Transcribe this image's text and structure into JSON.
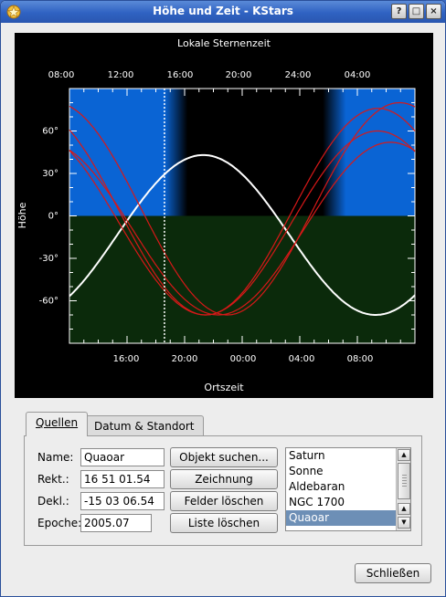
{
  "window": {
    "title": "Höhe und Zeit - KStars",
    "buttons": {
      "help": "?",
      "maximize": "□",
      "close": "×"
    }
  },
  "chart_data": {
    "type": "line",
    "top_axis_label": "Lokale Sternenzeit",
    "top_ticks": [
      "08:00",
      "12:00",
      "16:00",
      "20:00",
      "24:00",
      "04:00"
    ],
    "xlabel": "Ortszeit",
    "bottom_ticks": [
      "16:00",
      "20:00",
      "00:00",
      "04:00",
      "08:00"
    ],
    "ylabel": "Höhe",
    "y_ticks": [
      "60°",
      "30°",
      "0°",
      "-30°",
      "-60°"
    ],
    "ylim": [
      -90,
      90
    ],
    "x_hours": [
      12,
      36
    ],
    "current_time_hour": 18.6,
    "night": {
      "dark_start": 20.2,
      "dark_end": 29.6
    },
    "colors": {
      "day": "#0a64d4",
      "below_horizon": "#0b2a0b",
      "night": "#000000",
      "selected": "#ffffff",
      "other": "#d81818"
    },
    "series": [
      {
        "name": "Quaoar",
        "selected": true,
        "peak_alt": 43,
        "transit_hour": 21.3
      },
      {
        "name": "Saturn",
        "selected": false,
        "peak_alt": 80,
        "transit_hour": 11.0
      },
      {
        "name": "Sonne",
        "selected": false,
        "peak_alt": 76,
        "transit_hour": 9.5
      },
      {
        "name": "Aldebaran",
        "selected": false,
        "peak_alt": 60,
        "transit_hour": 33.4
      },
      {
        "name": "NGC 1700",
        "selected": false,
        "peak_alt": 52,
        "transit_hour": 34.3
      }
    ]
  },
  "tabs": [
    {
      "label": "Quellen",
      "active": true
    },
    {
      "label": "Datum & Standort",
      "active": false
    }
  ],
  "form": {
    "name_label": "Name:",
    "name_value": "Quaoar",
    "ra_label": "Rekt.:",
    "ra_value": "16 51 01.54",
    "dec_label": "Dekl.:",
    "dec_value": "-15 03 06.54",
    "epoch_label": "Epoche:",
    "epoch_value": "2005.07"
  },
  "actions": {
    "find_object": "Objekt suchen...",
    "plot": "Zeichnung",
    "clear_fields": "Felder löschen",
    "clear_list": "Liste löschen"
  },
  "object_list": {
    "items": [
      "Saturn",
      "Sonne",
      "Aldebaran",
      "NGC 1700",
      "Quaoar"
    ],
    "selected": "Quaoar"
  },
  "footer": {
    "close_label": "Schließen"
  }
}
